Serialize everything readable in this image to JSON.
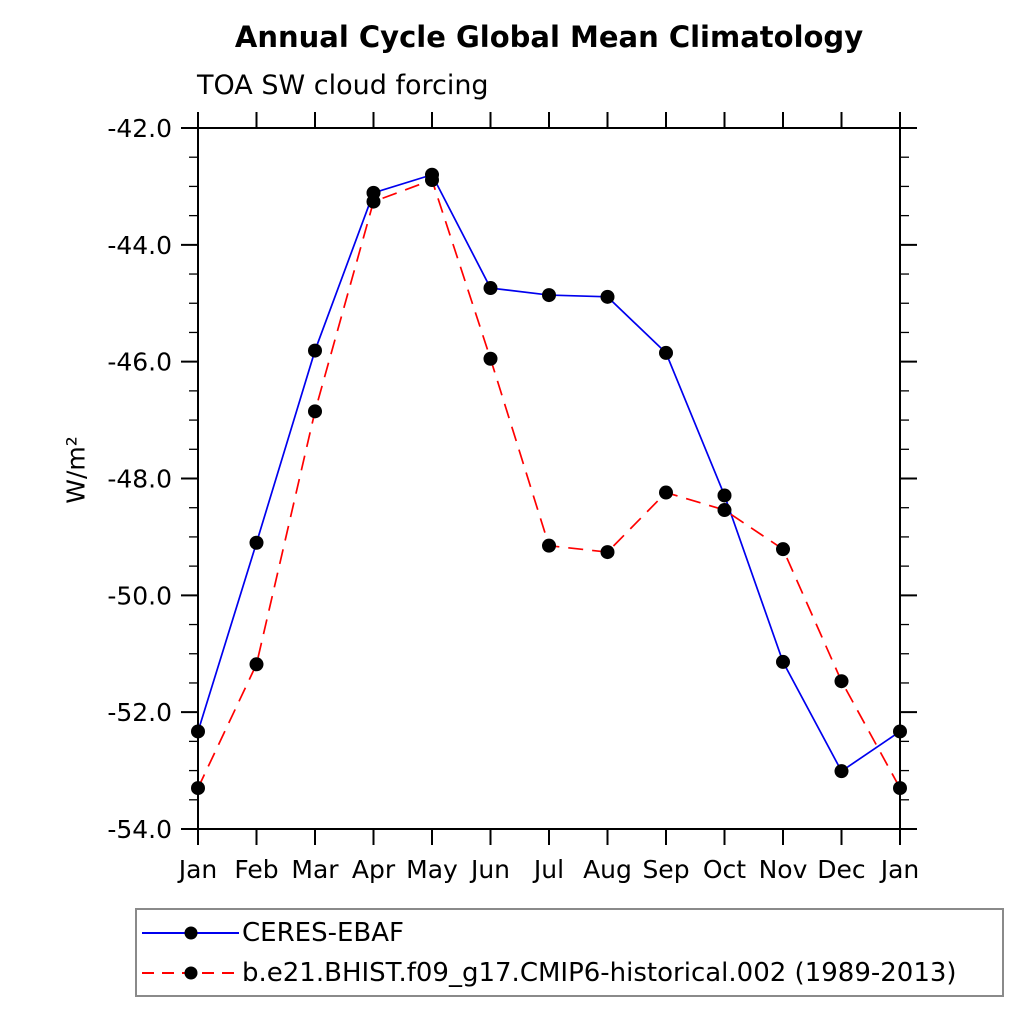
{
  "chart_data": {
    "type": "line",
    "title": "Annual Cycle Global Mean Climatology",
    "subtitle": "TOA SW cloud forcing",
    "ylabel": "W/m²",
    "categories": [
      "Jan",
      "Feb",
      "Mar",
      "Apr",
      "May",
      "Jun",
      "Jul",
      "Aug",
      "Sep",
      "Oct",
      "Nov",
      "Dec",
      "Jan"
    ],
    "ylim": [
      -54.0,
      -42.0
    ],
    "ytick_major": 2.0,
    "ytick_minor": 0.5,
    "grid": false,
    "legend_position": "bottom",
    "marker": "filled-circle",
    "marker_color": "#000000",
    "axis_color": "#000000",
    "series": [
      {
        "name": "CERES-EBAF",
        "color": "#0000ee",
        "style": "solid",
        "values": [
          -52.33,
          -49.1,
          -45.81,
          -43.11,
          -42.8,
          -44.74,
          -44.86,
          -44.89,
          -45.85,
          -48.29,
          -51.14,
          -53.01,
          -52.33
        ]
      },
      {
        "name": "b.e21.BHIST.f09_g17.CMIP6-historical.002 (1989-2013)",
        "color": "#ff0000",
        "style": "dashed",
        "values": [
          -53.3,
          -51.18,
          -46.85,
          -43.26,
          -42.89,
          -45.95,
          -49.15,
          -49.26,
          -48.24,
          -48.54,
          -49.21,
          -51.47,
          -53.3
        ]
      }
    ]
  }
}
